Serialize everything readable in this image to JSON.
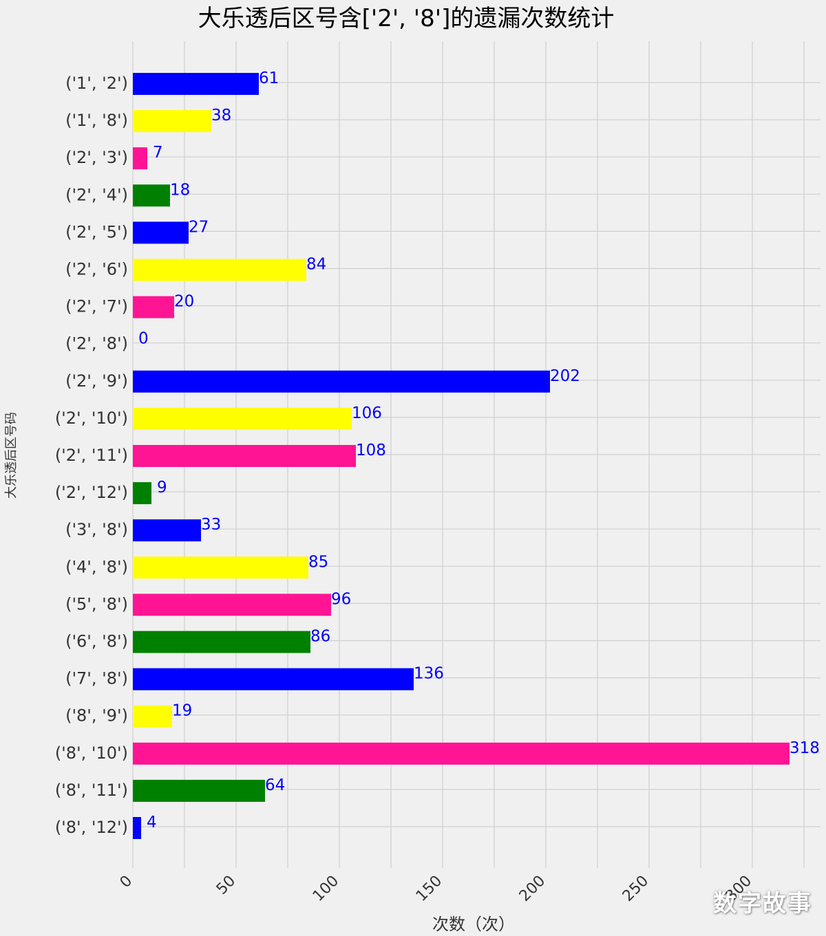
{
  "chart_data": {
    "type": "bar",
    "orientation": "horizontal",
    "title": "大乐透后区号含['2', '8']的遗漏次数统计",
    "xlabel": "次数（次）",
    "ylabel": "大乐透后区号码",
    "categories": [
      "('1', '2')",
      "('1', '8')",
      "('2', '3')",
      "('2', '4')",
      "('2', '5')",
      "('2', '6')",
      "('2', '7')",
      "('2', '8')",
      "('2', '9')",
      "('2', '10')",
      "('2', '11')",
      "('2', '12')",
      "('3', '8')",
      "('4', '8')",
      "('5', '8')",
      "('6', '8')",
      "('7', '8')",
      "('8', '9')",
      "('8', '10')",
      "('8', '11')",
      "('8', '12')"
    ],
    "values": [
      61,
      38,
      7,
      18,
      27,
      84,
      20,
      0,
      202,
      106,
      108,
      9,
      33,
      85,
      96,
      86,
      136,
      19,
      318,
      64,
      4
    ],
    "value_labels": [
      "61",
      "38",
      "7",
      "18",
      "27",
      "84",
      "20",
      "0",
      "202",
      "106",
      "108",
      "9",
      "33",
      "85",
      "96",
      "86",
      "136",
      "19",
      "318",
      "64",
      "4"
    ],
    "bar_colors": [
      "#0000ff",
      "#ffff00",
      "#ff1493",
      "#008000"
    ],
    "value_label_color": "#0000ff",
    "xticks": [
      0,
      50,
      100,
      150,
      200,
      250,
      300
    ],
    "xtick_labels": [
      "0",
      "50",
      "100",
      "150",
      "200",
      "250",
      "300"
    ],
    "xlim": [
      0,
      335
    ],
    "grid": true
  },
  "watermark": "数字故事"
}
